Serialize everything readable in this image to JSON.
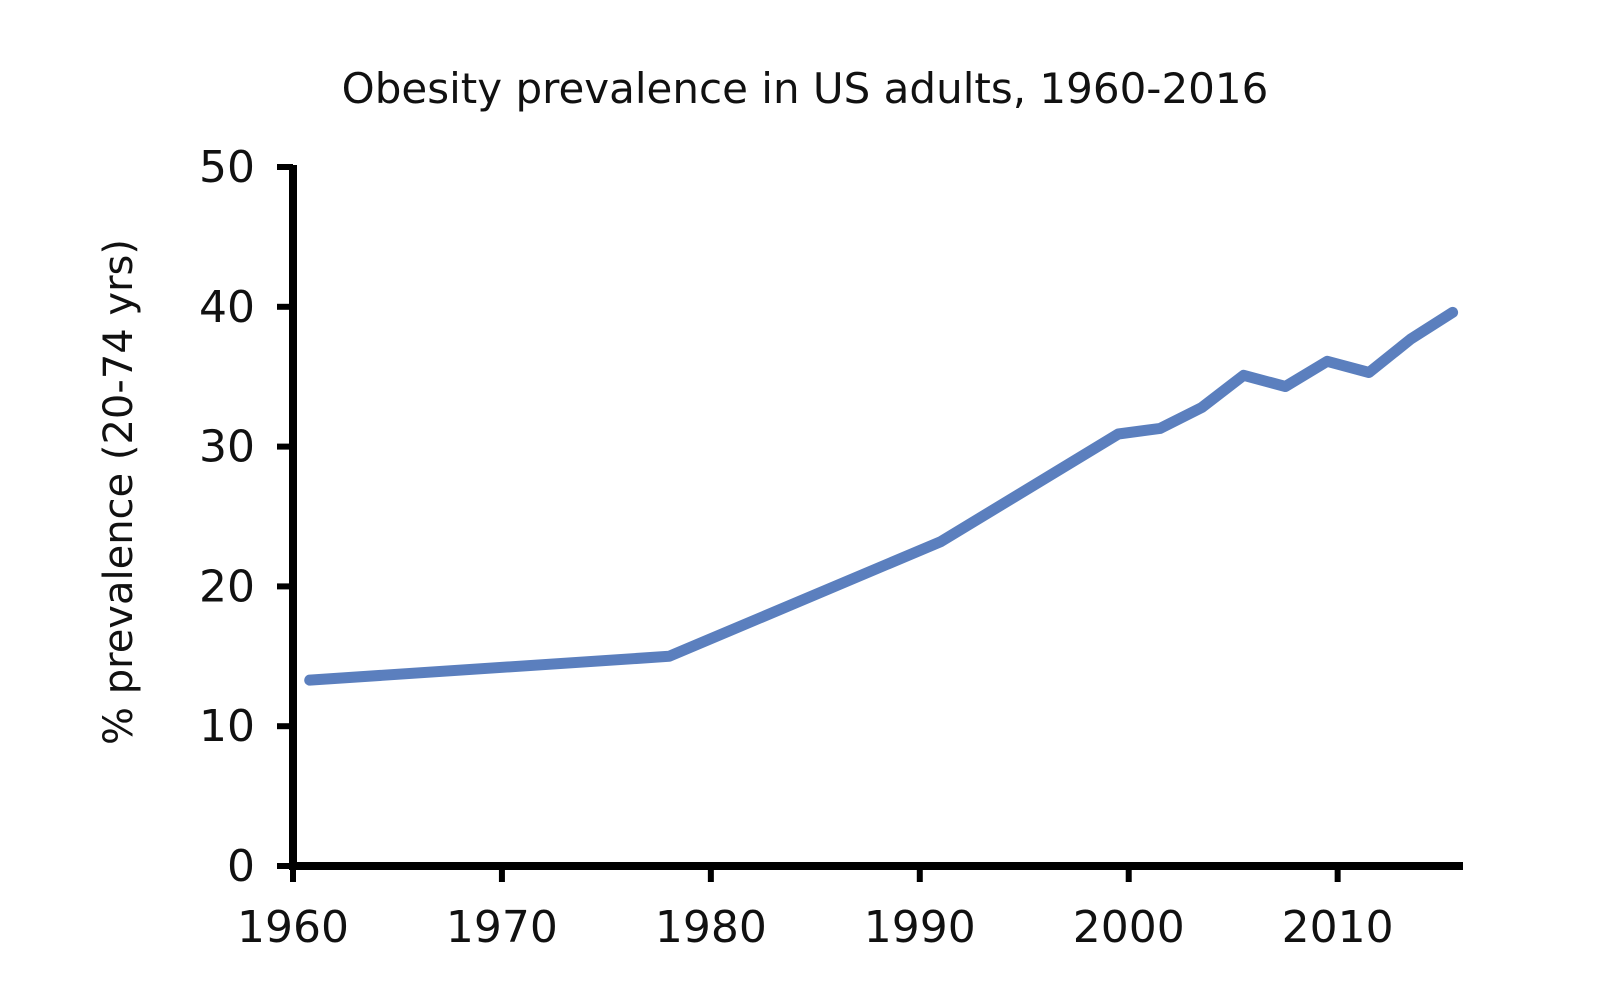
{
  "chart_data": {
    "type": "line",
    "title": "Obesity prevalence in US adults, 1960-2016",
    "xlabel": "",
    "ylabel": "% prevalence (20-74 yrs)",
    "xlim": [
      1960,
      2016
    ],
    "ylim": [
      0,
      50
    ],
    "x_ticks": [
      1960,
      1970,
      1980,
      1990,
      2000,
      2010
    ],
    "y_ticks": [
      0,
      10,
      20,
      30,
      40,
      50
    ],
    "grid": false,
    "series": [
      {
        "color": "#5b7fbe",
        "x": [
          1960.8,
          1978,
          1991,
          1999.5,
          2001.5,
          2003.5,
          2005.5,
          2007.5,
          2009.5,
          2011.5,
          2013.5,
          2015.5
        ],
        "y": [
          13.3,
          15.0,
          23.2,
          30.9,
          31.3,
          32.8,
          35.1,
          34.3,
          36.1,
          35.3,
          37.7,
          39.6
        ]
      }
    ]
  }
}
